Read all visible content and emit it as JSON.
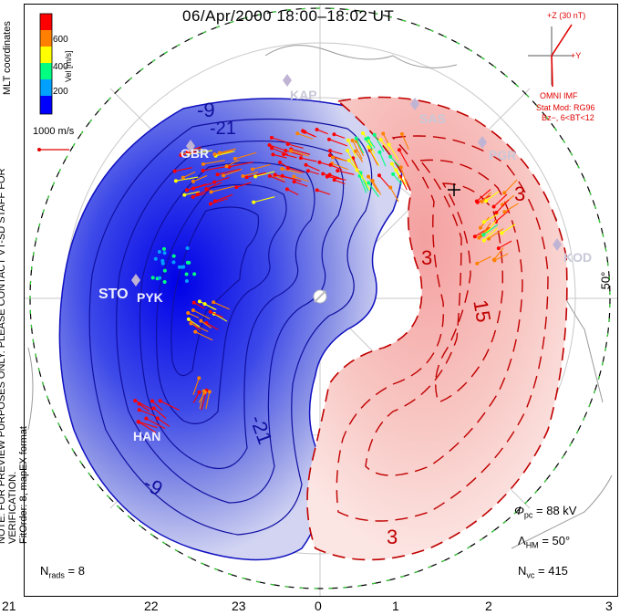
{
  "title": "06/Apr/2000 18:00–18:02 UT",
  "note": {
    "line1": "NOTE: FOR PREVIEW PURPOSES ONLY. PLEASE CONTACT VT-SD STAFF FOR VERIFICATION.",
    "line2": "FitOrder: 8, mapEX format"
  },
  "colorbar": {
    "label": "Vel [m/s]",
    "ticks": [
      "600",
      "400",
      "200"
    ],
    "coords_label": "MLT coordinates",
    "colors": [
      "#0000ff",
      "#00a0ff",
      "#00ff80",
      "#ffff00",
      "#ff8000",
      "#ff0000"
    ]
  },
  "vector_scale": "1000 m/s",
  "imf": {
    "z_label": "+Z (30 nT)",
    "y_label": "+Y",
    "omni": "OMNI IMF",
    "stat_mod": "Stat Mod: RG96",
    "bz": "Bz−, 6<BT<12"
  },
  "radars": [
    "GBR",
    "STO",
    "PYK",
    "HAN",
    "KAP",
    "SAS",
    "PGR",
    "KOD"
  ],
  "contour_labels": {
    "negative": [
      "-9",
      "-21",
      "-21",
      "-9"
    ],
    "positive": [
      "3",
      "3",
      "15",
      "3"
    ]
  },
  "lat_label": "50°",
  "stats": {
    "phi_pc": "= 88 kV",
    "lambda_hm": "= 50°",
    "n_vc": "= 415",
    "n_rads": "= 8"
  },
  "x_axis": [
    "21",
    "22",
    "23",
    "0",
    "1",
    "2",
    "3"
  ]
}
